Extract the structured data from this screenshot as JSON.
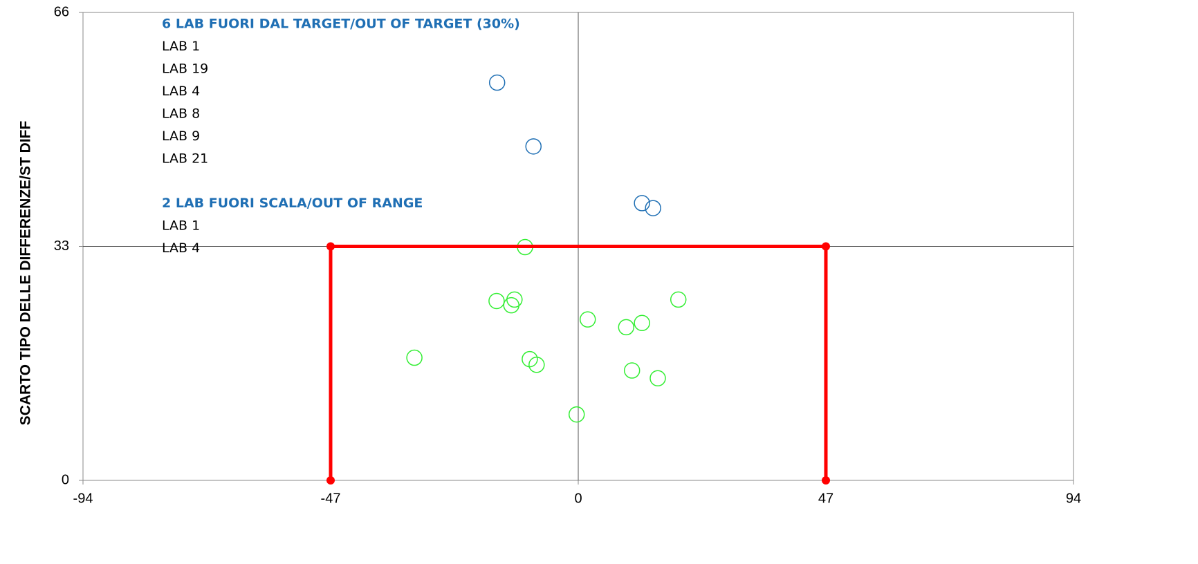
{
  "chart_data": {
    "type": "scatter",
    "y_label": "SCARTO TIPO DELLE DIFFERENZE/ST DIFF",
    "xlim": [
      -94,
      94
    ],
    "xticks": [
      -94,
      -47,
      0,
      47,
      94
    ],
    "ylim": [
      0,
      66
    ],
    "yticks": [
      0,
      33,
      66
    ],
    "crosshair": [
      0,
      33
    ],
    "series": [
      {
        "color": "#1f6fb4",
        "x": [
          -15.4,
          -8.5,
          12.1,
          14.2
        ],
        "y": [
          56.1,
          47.1,
          39.1,
          38.4
        ]
      },
      {
        "color": "#33ee33",
        "x": [
          -10.1,
          -15.5,
          -12.1,
          -12.7,
          19.0,
          1.8,
          12.1,
          9.1,
          -31.1,
          -9.2,
          -7.9,
          10.2,
          15.1,
          -0.3
        ],
        "y": [
          32.9,
          25.3,
          25.5,
          24.7,
          25.5,
          22.7,
          22.2,
          21.6,
          17.3,
          17.1,
          16.3,
          15.5,
          14.4,
          9.3
        ]
      },
      {
        "color": "#ff0000",
        "line": true,
        "x": [
          -47,
          -47,
          47,
          47
        ],
        "y": [
          0,
          33,
          33,
          0
        ]
      }
    ],
    "annotations": [
      {
        "title": "6 LAB FUORI DAL TARGET/OUT OF TARGET (30%)",
        "items": [
          "LAB 1",
          "LAB 19",
          "LAB 4",
          "LAB 8",
          "LAB 9",
          "LAB 21"
        ]
      },
      {
        "title": "2 LAB FUORI SCALA/OUT OF RANGE",
        "items": [
          "LAB 1",
          "LAB 4"
        ]
      }
    ]
  }
}
